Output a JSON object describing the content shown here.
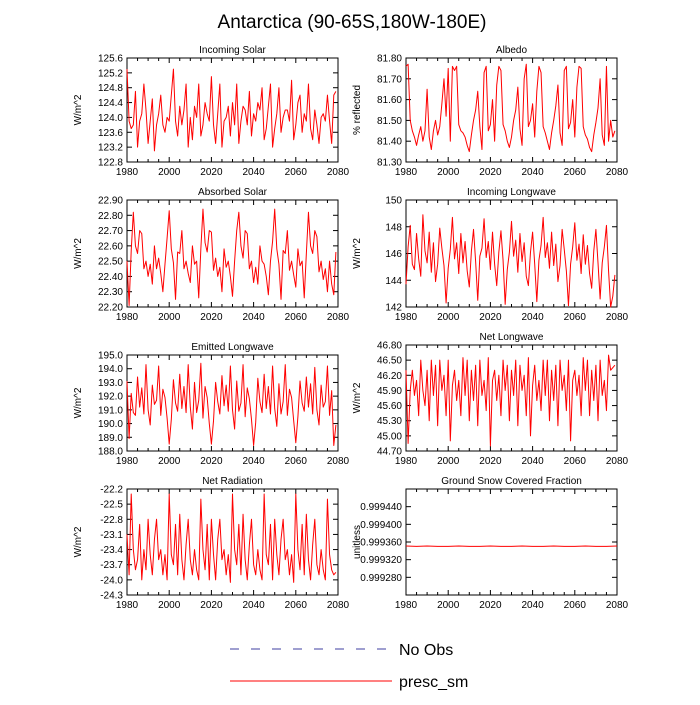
{
  "title": "Antarctica (90-65S,180W-180E)",
  "colors": {
    "model": "#ff0000",
    "obs": "#3f3fa0",
    "axis": "#000000"
  },
  "legend": {
    "obs_label": "No Obs",
    "model_label": "presc_sm"
  },
  "chart_data": [
    {
      "type": "line",
      "title": "Incoming Solar",
      "ylabel": "W/m^2",
      "xlim": [
        1980,
        2080
      ],
      "ylim": [
        122.8,
        125.6
      ],
      "yticks": [
        "122.8",
        "123.2",
        "123.6",
        "124.0",
        "124.4",
        "124.8",
        "125.2",
        "125.6"
      ],
      "xticks": [
        "1980",
        "2000",
        "2020",
        "2040",
        "2060",
        "2080"
      ],
      "series": [
        {
          "name": "presc_sm",
          "x_start": 1980,
          "x_step": 1,
          "values": [
            125.3,
            123.9,
            123.7,
            123.8,
            124.7,
            123.2,
            123.9,
            124.1,
            124.9,
            124.2,
            123.3,
            123.9,
            124.5,
            123.1,
            123.8,
            124.1,
            124.6,
            123.8,
            123.6,
            124.0,
            123.9,
            124.6,
            125.3,
            123.9,
            123.5,
            124.3,
            123.8,
            124.2,
            124.9,
            123.2,
            124.0,
            123.4,
            124.3,
            124.0,
            124.9,
            123.5,
            123.8,
            124.4,
            124.1,
            123.9,
            125.1,
            123.8,
            123.3,
            124.1,
            124.9,
            123.2,
            123.9,
            124.0,
            124.3,
            123.5,
            124.4,
            123.8,
            124.9,
            123.3,
            123.9,
            124.3,
            124.2,
            123.8,
            124.7,
            123.5,
            124.1,
            123.9,
            124.4,
            124.2,
            124.8,
            123.4,
            123.7,
            124.3,
            124.9,
            123.2,
            123.7,
            124.1,
            124.8,
            123.6,
            124.0,
            124.2,
            124.2,
            123.9,
            125.0,
            123.4,
            123.8,
            124.4,
            124.6,
            123.6,
            124.1,
            123.9,
            124.9,
            123.7,
            123.4,
            124.2,
            123.8,
            123.3,
            124.0,
            124.1,
            123.9,
            124.6,
            123.9,
            123.3,
            124.6,
            124.7
          ]
        }
      ]
    },
    {
      "type": "line",
      "title": "Albedo",
      "ylabel": "% reflected",
      "xlim": [
        1980,
        2080
      ],
      "ylim": [
        81.3,
        81.8
      ],
      "yticks": [
        "81.30",
        "81.40",
        "81.50",
        "81.60",
        "81.70",
        "81.80"
      ],
      "xticks": [
        "1980",
        "2000",
        "2020",
        "2040",
        "2060",
        "2080"
      ],
      "series": [
        {
          "name": "presc_sm",
          "x_start": 1980,
          "x_step": 1,
          "values": [
            81.76,
            81.77,
            81.5,
            81.45,
            81.42,
            81.38,
            81.43,
            81.47,
            81.4,
            81.45,
            81.65,
            81.42,
            81.36,
            81.45,
            81.5,
            81.43,
            81.47,
            81.58,
            81.7,
            81.52,
            81.75,
            81.4,
            81.76,
            81.74,
            81.76,
            81.48,
            81.45,
            81.44,
            81.42,
            81.38,
            81.35,
            81.43,
            81.5,
            81.55,
            81.64,
            81.47,
            81.36,
            81.73,
            81.76,
            81.45,
            81.48,
            81.6,
            81.4,
            81.67,
            81.76,
            81.74,
            81.48,
            81.45,
            81.4,
            81.37,
            81.42,
            81.5,
            81.55,
            81.66,
            81.46,
            81.38,
            81.7,
            81.77,
            81.47,
            81.5,
            81.58,
            81.42,
            81.64,
            81.76,
            81.73,
            81.47,
            81.44,
            81.4,
            81.36,
            81.44,
            81.5,
            81.57,
            81.67,
            81.44,
            81.38,
            81.74,
            81.76,
            81.46,
            81.49,
            81.6,
            81.42,
            81.66,
            81.76,
            81.75,
            81.47,
            81.43,
            81.41,
            81.37,
            81.35,
            81.43,
            81.49,
            81.56,
            81.7,
            81.43,
            81.38,
            81.76,
            81.4,
            81.5,
            81.42,
            81.45
          ]
        }
      ]
    },
    {
      "type": "line",
      "title": "Absorbed Solar",
      "ylabel": "W/m^2",
      "xlim": [
        1980,
        2080
      ],
      "ylim": [
        22.2,
        22.9
      ],
      "yticks": [
        "22.20",
        "22.30",
        "22.40",
        "22.50",
        "22.60",
        "22.70",
        "22.80",
        "22.90"
      ],
      "xticks": [
        "1980",
        "2000",
        "2020",
        "2040",
        "2060",
        "2080"
      ],
      "series": [
        {
          "name": "presc_sm",
          "x_start": 1980,
          "x_step": 1,
          "values": [
            22.5,
            22.21,
            22.57,
            22.82,
            22.6,
            22.55,
            22.7,
            22.68,
            22.45,
            22.5,
            22.4,
            22.48,
            22.35,
            22.6,
            22.45,
            22.52,
            22.42,
            22.3,
            22.48,
            22.65,
            22.83,
            22.58,
            22.49,
            22.25,
            22.56,
            22.55,
            22.7,
            22.45,
            22.5,
            22.42,
            22.36,
            22.6,
            22.48,
            22.5,
            22.26,
            22.58,
            22.84,
            22.62,
            22.56,
            22.7,
            22.69,
            22.44,
            22.52,
            22.4,
            22.46,
            22.3,
            22.58,
            22.46,
            22.5,
            22.4,
            22.27,
            22.5,
            22.7,
            22.82,
            22.6,
            22.52,
            22.7,
            22.68,
            22.45,
            22.5,
            22.36,
            22.46,
            22.35,
            22.6,
            22.5,
            22.48,
            22.4,
            22.28,
            22.5,
            22.63,
            22.84,
            22.58,
            22.48,
            22.25,
            22.57,
            22.55,
            22.7,
            22.44,
            22.5,
            22.41,
            22.33,
            22.58,
            22.47,
            22.5,
            22.26,
            22.55,
            22.82,
            22.6,
            22.55,
            22.7,
            22.66,
            22.43,
            22.5,
            22.38,
            22.45,
            22.3,
            22.5,
            22.35,
            22.28,
            22.56
          ]
        }
      ]
    },
    {
      "type": "line",
      "title": "Incoming Longwave",
      "ylabel": "W/m^2",
      "xlim": [
        1980,
        2080
      ],
      "ylim": [
        142,
        150
      ],
      "yticks": [
        "142",
        "144",
        "146",
        "148",
        "150"
      ],
      "xticks": [
        "1980",
        "2000",
        "2020",
        "2040",
        "2060",
        "2080"
      ],
      "series": [
        {
          "name": "presc_sm",
          "x_start": 1980,
          "x_step": 1,
          "values": [
            143.7,
            146.5,
            148.1,
            145.2,
            144.8,
            147.5,
            145.6,
            144.3,
            148.9,
            146.2,
            145.3,
            147.6,
            144.6,
            146.8,
            143.9,
            145.2,
            147.9,
            146.4,
            145.1,
            142.3,
            144.9,
            146.3,
            148.7,
            145.6,
            146.8,
            144.5,
            147.5,
            145.3,
            146.9,
            144.7,
            143.5,
            146.2,
            147.8,
            145.4,
            142.5,
            145.8,
            146.4,
            148.6,
            145.7,
            146.9,
            144.8,
            147.6,
            145.2,
            143.6,
            146.1,
            147.7,
            145.5,
            142.2,
            144.8,
            146.1,
            148.4,
            145.8,
            147.0,
            144.6,
            147.5,
            145.4,
            146.8,
            144.3,
            143.6,
            146.1,
            147.6,
            145.2,
            142.4,
            145.5,
            146.6,
            148.7,
            145.7,
            146.8,
            144.9,
            147.6,
            145.1,
            146.7,
            143.9,
            145.1,
            147.8,
            146.3,
            144.7,
            142.1,
            145.2,
            146.5,
            148.3,
            145.5,
            146.7,
            144.5,
            147.4,
            145.2,
            146.6,
            144.5,
            143.4,
            146.2,
            147.8,
            145.3,
            142.6,
            145.3,
            146.5,
            148.1,
            144.7,
            142.0,
            142.8,
            144.4
          ]
        }
      ]
    },
    {
      "type": "line",
      "title": "Emitted Longwave",
      "ylabel": "W/m^2",
      "xlim": [
        1980,
        2080
      ],
      "ylim": [
        188,
        195
      ],
      "yticks": [
        "188.0",
        "189.0",
        "190.0",
        "191.0",
        "192.0",
        "193.0",
        "194.0",
        "195.0"
      ],
      "xticks": [
        "1980",
        "2000",
        "2020",
        "2040",
        "2060",
        "2080"
      ],
      "series": [
        {
          "name": "presc_sm",
          "x_start": 1980,
          "x_step": 1,
          "values": [
            193.1,
            188.9,
            192.2,
            190.8,
            190.6,
            193.4,
            191.2,
            192.6,
            190.7,
            194.3,
            191.0,
            189.9,
            192.8,
            191.4,
            191.7,
            194.2,
            190.6,
            192.5,
            191.9,
            190.4,
            188.5,
            190.3,
            193.2,
            191.5,
            190.9,
            193.6,
            191.1,
            192.7,
            190.8,
            194.3,
            191.2,
            189.6,
            193.0,
            190.8,
            191.7,
            194.4,
            190.4,
            192.7,
            191.9,
            190.0,
            188.5,
            190.2,
            193.0,
            191.6,
            190.7,
            193.5,
            191.3,
            192.8,
            190.9,
            194.2,
            191.0,
            189.6,
            193.1,
            190.9,
            191.5,
            194.3,
            190.5,
            192.6,
            191.8,
            190.3,
            188.4,
            190.1,
            193.3,
            191.6,
            190.8,
            193.6,
            191.1,
            192.7,
            190.7,
            194.2,
            191.1,
            189.8,
            192.9,
            190.7,
            191.6,
            194.3,
            190.6,
            192.5,
            191.9,
            190.2,
            188.6,
            190.5,
            193.1,
            191.5,
            190.9,
            193.4,
            191.2,
            192.9,
            190.7,
            194.1,
            191.0,
            189.9,
            192.8,
            191.2,
            191.6,
            194.2,
            190.6,
            192.4,
            188.4,
            189.9
          ]
        }
      ]
    },
    {
      "type": "line",
      "title": "Net Longwave",
      "ylabel": "W/m^2",
      "xlim": [
        1980,
        2080
      ],
      "ylim": [
        44.7,
        46.8
      ],
      "yticks": [
        "44.70",
        "45.00",
        "45.30",
        "45.60",
        "45.90",
        "46.20",
        "46.50",
        "46.80"
      ],
      "xticks": [
        "1980",
        "2000",
        "2020",
        "2040",
        "2060",
        "2080"
      ],
      "series": [
        {
          "name": "presc_sm",
          "x_start": 1980,
          "x_step": 1,
          "values": [
            46.3,
            44.85,
            45.9,
            46.3,
            45.8,
            46.1,
            45.4,
            46.5,
            45.9,
            45.6,
            46.3,
            45.3,
            46.5,
            45.8,
            46.4,
            45.2,
            46.5,
            45.9,
            46.2,
            45.4,
            46.5,
            44.9,
            46.0,
            46.3,
            45.7,
            46.1,
            45.4,
            46.55,
            45.8,
            46.5,
            45.3,
            46.3,
            45.7,
            46.4,
            45.2,
            46.5,
            45.8,
            46.1,
            45.5,
            46.55,
            44.8,
            46.1,
            46.3,
            45.7,
            46.2,
            45.4,
            46.5,
            45.9,
            46.4,
            45.3,
            46.3,
            45.8,
            46.5,
            45.2,
            46.4,
            45.9,
            46.2,
            45.4,
            46.55,
            45.0,
            46.0,
            46.4,
            45.7,
            46.1,
            45.5,
            46.5,
            45.8,
            46.5,
            45.3,
            46.3,
            45.7,
            46.4,
            45.2,
            46.5,
            45.9,
            46.2,
            45.5,
            46.5,
            44.9,
            46.1,
            46.3,
            45.8,
            46.2,
            45.4,
            46.55,
            45.9,
            46.5,
            45.4,
            46.3,
            45.7,
            46.4,
            45.3,
            46.5,
            45.8,
            46.1,
            45.5,
            46.6,
            46.3,
            46.35,
            46.4
          ]
        }
      ]
    },
    {
      "type": "line",
      "title": "Net Radiation",
      "ylabel": "W/m^2",
      "xlim": [
        1980,
        2080
      ],
      "ylim": [
        -24.3,
        -22.2
      ],
      "yticks": [
        "-24.3",
        "-24.0",
        "-23.7",
        "-23.4",
        "-23.1",
        "-22.8",
        "-22.5",
        "-22.2"
      ],
      "xticks": [
        "1980",
        "2000",
        "2020",
        "2040",
        "2060",
        "2080"
      ],
      "series": [
        {
          "name": "presc_sm",
          "x_start": 1980,
          "x_step": 1,
          "values": [
            -23.1,
            -23.9,
            -22.3,
            -23.4,
            -23.8,
            -23.6,
            -22.9,
            -24.0,
            -23.4,
            -23.8,
            -22.8,
            -23.5,
            -23.9,
            -23.2,
            -22.8,
            -23.6,
            -23.4,
            -23.9,
            -23.5,
            -24.0,
            -22.3,
            -23.5,
            -23.7,
            -22.9,
            -23.9,
            -22.7,
            -23.6,
            -24.0,
            -23.3,
            -22.8,
            -23.6,
            -23.9,
            -23.4,
            -23.8,
            -24.0,
            -22.4,
            -23.4,
            -23.8,
            -22.9,
            -24.0,
            -22.8,
            -23.5,
            -24.0,
            -23.2,
            -22.8,
            -23.6,
            -23.4,
            -23.9,
            -23.5,
            -24.05,
            -22.3,
            -23.4,
            -23.7,
            -22.9,
            -23.9,
            -22.7,
            -23.6,
            -24.0,
            -23.3,
            -22.8,
            -23.7,
            -23.9,
            -23.4,
            -23.8,
            -24.0,
            -22.3,
            -23.5,
            -23.7,
            -22.9,
            -24.0,
            -22.8,
            -23.5,
            -23.9,
            -23.2,
            -22.8,
            -23.6,
            -23.4,
            -23.9,
            -23.5,
            -24.05,
            -22.3,
            -23.4,
            -23.8,
            -22.9,
            -23.9,
            -22.7,
            -23.6,
            -24.0,
            -23.3,
            -22.8,
            -23.7,
            -23.9,
            -23.4,
            -23.8,
            -24.0,
            -22.4,
            -23.5,
            -23.8,
            -23.9,
            -23.85
          ]
        }
      ]
    },
    {
      "type": "line",
      "title": "Ground Snow Covered Fraction",
      "ylabel": "unitless",
      "xlim": [
        1980,
        2080
      ],
      "ylim": [
        0.99924,
        0.99948
      ],
      "yticks": [
        "0.999280",
        "0.999320",
        "0.999360",
        "0.999400",
        "0.999440"
      ],
      "xticks": [
        "1980",
        "2000",
        "2020",
        "2040",
        "2060",
        "2080"
      ],
      "series": [
        {
          "name": "presc_sm",
          "x_start": 1980,
          "x_step": 5,
          "values": [
            0.999351,
            0.99935,
            0.999351,
            0.99935,
            0.99935,
            0.999351,
            0.99935,
            0.99935,
            0.999351,
            0.99935,
            0.99935,
            0.999351,
            0.99935,
            0.99935,
            0.999351,
            0.99935,
            0.99935,
            0.999351,
            0.99935,
            0.99935,
            0.999351
          ]
        }
      ]
    }
  ]
}
